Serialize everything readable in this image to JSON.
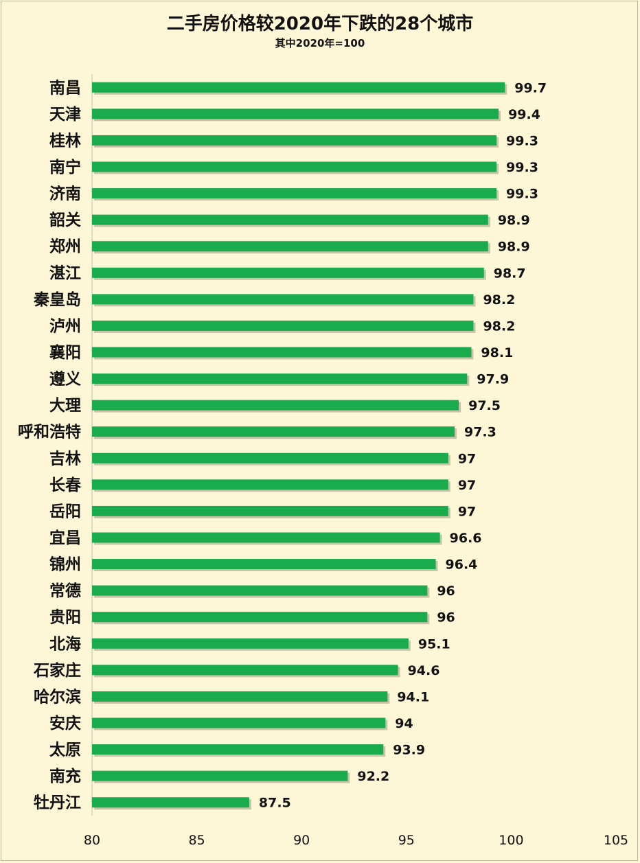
{
  "colors": {
    "background": "#fdf7d8",
    "bar": "#1aab4c",
    "axis": "#bdbdbd"
  },
  "chart_data": {
    "type": "bar",
    "orientation": "horizontal",
    "title": "二手房价格较2020年下跌的28个城市",
    "subtitle": "其中2020年=100",
    "xlim": [
      80,
      105
    ],
    "xticks": [
      80,
      85,
      90,
      95,
      100,
      105
    ],
    "grid": false,
    "categories": [
      "南昌",
      "天津",
      "桂林",
      "南宁",
      "济南",
      "韶关",
      "郑州",
      "湛江",
      "秦皇岛",
      "泸州",
      "襄阳",
      "遵义",
      "大理",
      "呼和浩特",
      "吉林",
      "长春",
      "岳阳",
      "宜昌",
      "锦州",
      "常德",
      "贵阳",
      "北海",
      "石家庄",
      "哈尔滨",
      "安庆",
      "太原",
      "南充",
      "牡丹江"
    ],
    "values": [
      99.7,
      99.4,
      99.3,
      99.3,
      99.3,
      98.9,
      98.9,
      98.7,
      98.2,
      98.2,
      98.1,
      97.9,
      97.5,
      97.3,
      97,
      97,
      97,
      96.6,
      96.4,
      96,
      96,
      95.1,
      94.6,
      94.1,
      94,
      93.9,
      92.2,
      87.5
    ]
  }
}
